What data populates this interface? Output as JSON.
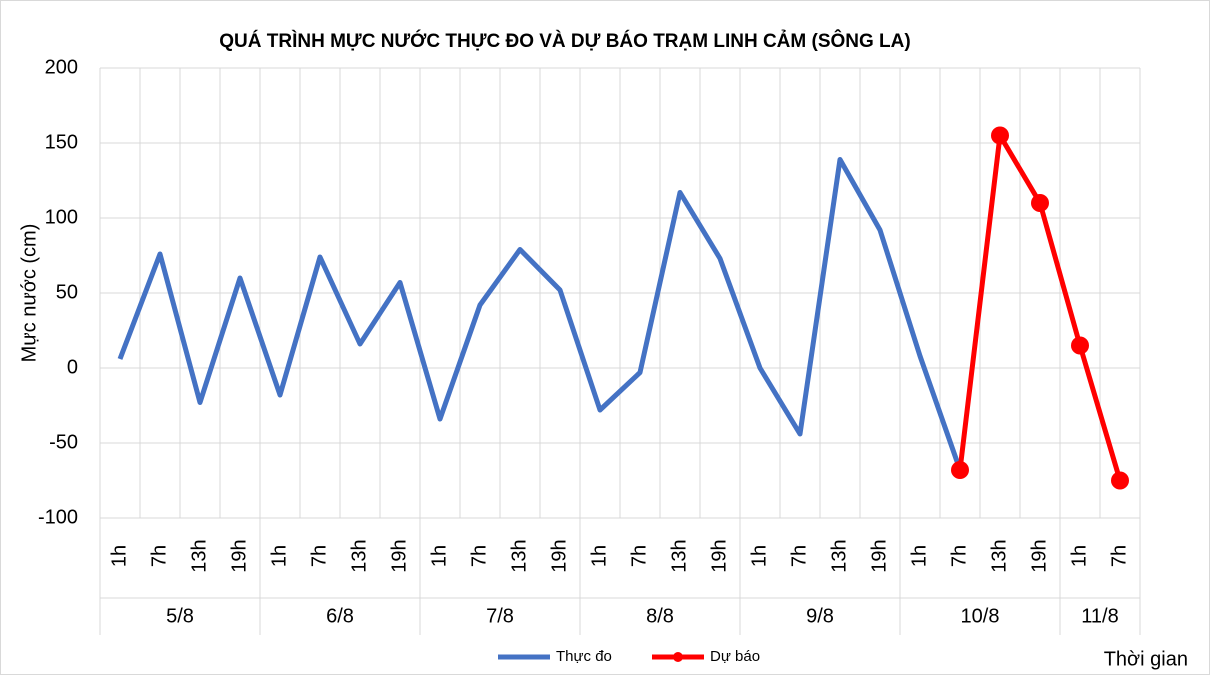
{
  "chart_data": {
    "type": "line",
    "title": "QUÁ TRÌNH MỰC NƯỚC THỰC ĐO VÀ DỰ BÁO TRẠM LINH CẢM (SÔNG LA)",
    "y_label": "Mực nước (cm)",
    "x_label": "Thời gian",
    "groups": [
      {
        "label": "5/8",
        "categories": [
          "1h",
          "7h",
          "13h",
          "19h"
        ]
      },
      {
        "label": "6/8",
        "categories": [
          "1h",
          "7h",
          "13h",
          "19h"
        ]
      },
      {
        "label": "7/8",
        "categories": [
          "1h",
          "7h",
          "13h",
          "19h"
        ]
      },
      {
        "label": "8/8",
        "categories": [
          "1h",
          "7h",
          "13h",
          "19h"
        ]
      },
      {
        "label": "9/8",
        "categories": [
          "1h",
          "7h",
          "13h",
          "19h"
        ]
      },
      {
        "label": "10/8",
        "categories": [
          "1h",
          "7h",
          "13h",
          "19h"
        ]
      },
      {
        "label": "11/8",
        "categories": [
          "1h",
          "7h"
        ]
      }
    ],
    "series": [
      {
        "name": "Thực đo",
        "color": "#4472c4",
        "markers": false,
        "values": [
          6,
          76,
          -23,
          60,
          -18,
          74,
          16,
          57,
          -34,
          42,
          79,
          52,
          -28,
          -3,
          117,
          73,
          0,
          -44,
          139,
          92,
          8,
          -68,
          null,
          null,
          null,
          null
        ]
      },
      {
        "name": "Dự báo",
        "color": "#ff0000",
        "markers": true,
        "values": [
          null,
          null,
          null,
          null,
          null,
          null,
          null,
          null,
          null,
          null,
          null,
          null,
          null,
          null,
          null,
          null,
          null,
          null,
          null,
          null,
          null,
          -68,
          155,
          110,
          15,
          -75
        ]
      }
    ],
    "ylim": [
      -100,
      200
    ],
    "yticks": [
      -100,
      -50,
      0,
      50,
      100,
      150,
      200
    ],
    "grid": true,
    "legend": "bottom"
  }
}
